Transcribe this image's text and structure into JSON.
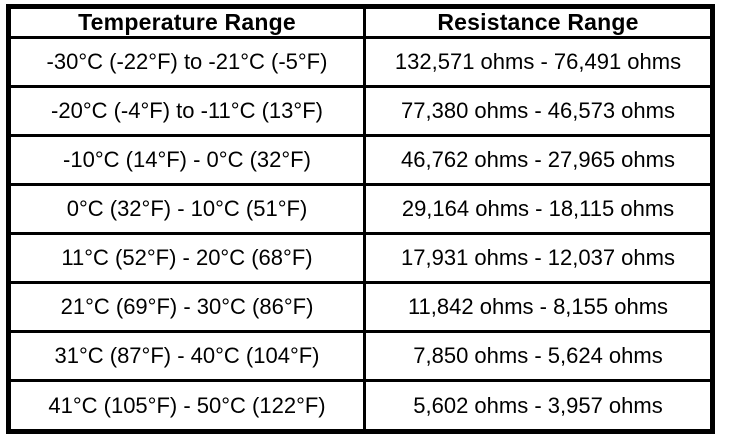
{
  "table": {
    "headers": {
      "temperature": "Temperature Range",
      "resistance": "Resistance Range"
    },
    "rows": [
      {
        "temperature": "-30°C (-22°F) to -21°C (-5°F)",
        "resistance": "132,571 ohms - 76,491 ohms"
      },
      {
        "temperature": "-20°C (-4°F) to -11°C (13°F)",
        "resistance": "77,380 ohms - 46,573 ohms"
      },
      {
        "temperature": "-10°C (14°F) - 0°C (32°F)",
        "resistance": "46,762 ohms - 27,965 ohms"
      },
      {
        "temperature": "0°C (32°F) - 10°C (51°F)",
        "resistance": "29,164 ohms - 18,115 ohms"
      },
      {
        "temperature": "11°C (52°F) - 20°C (68°F)",
        "resistance": "17,931 ohms - 12,037 ohms"
      },
      {
        "temperature": "21°C (69°F) - 30°C (86°F)",
        "resistance": "11,842 ohms - 8,155 ohms"
      },
      {
        "temperature": "31°C (87°F) - 40°C (104°F)",
        "resistance": "7,850 ohms - 5,624 ohms"
      },
      {
        "temperature": "41°C (105°F) - 50°C (122°F)",
        "resistance": "5,602 ohms - 3,957 ohms"
      }
    ],
    "border_color": "#000000",
    "background_color": "#ffffff",
    "text_color": "#000000"
  }
}
